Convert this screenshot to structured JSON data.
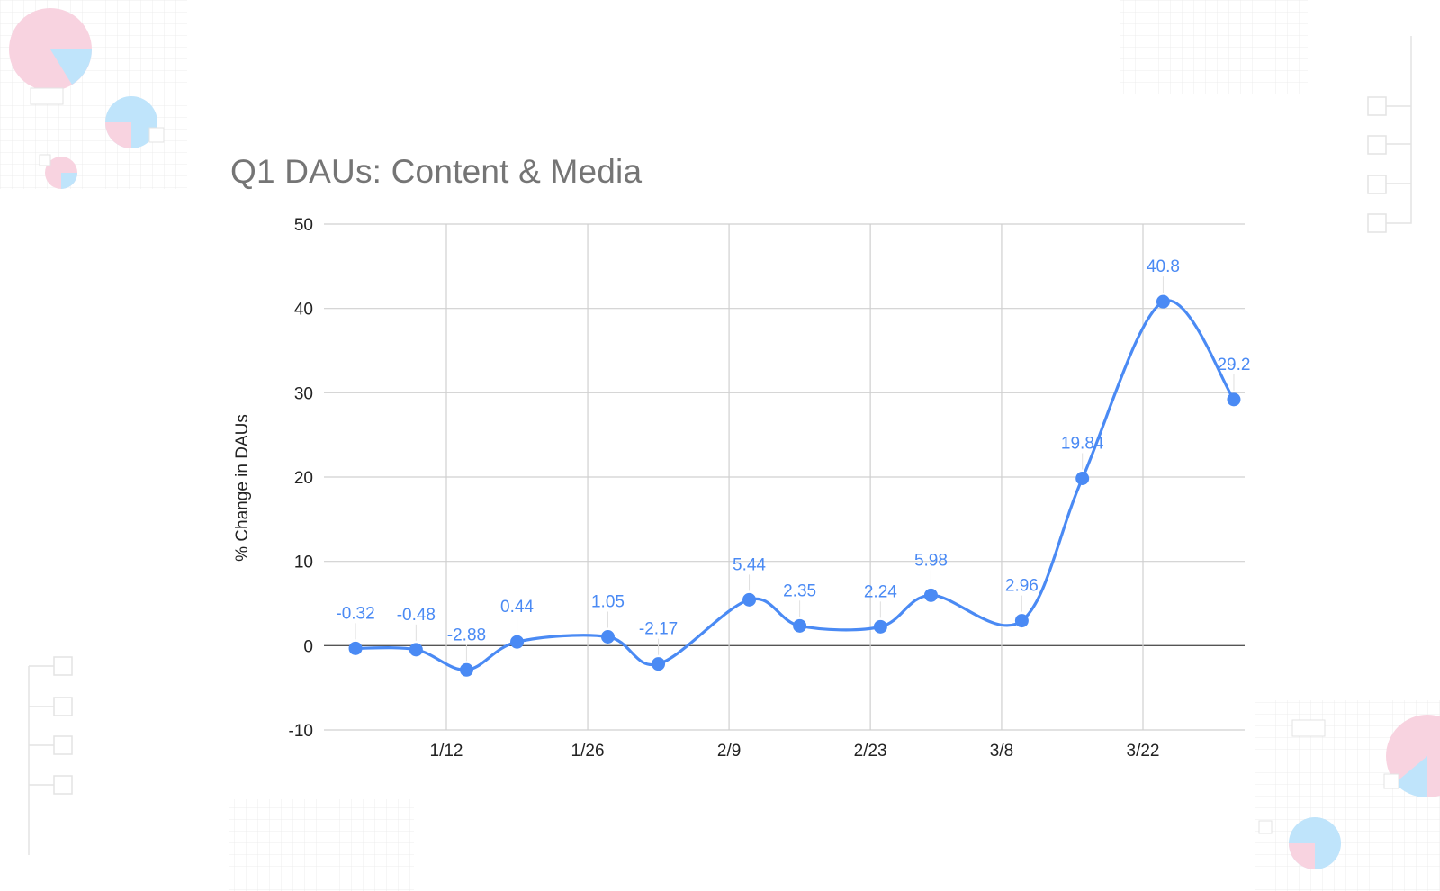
{
  "chart_data": {
    "type": "line",
    "title": "Q1 DAUs: Content & Media",
    "xlabel": "",
    "ylabel": "% Change in DAUs",
    "ylim": [
      -10,
      50
    ],
    "yticks": [
      -10,
      0,
      10,
      20,
      30,
      40,
      50
    ],
    "x_tick_labels": [
      "1/12",
      "1/26",
      "2/9",
      "2/23",
      "3/8",
      "3/22"
    ],
    "smooth": true,
    "grid": true,
    "legend": "none",
    "colors": {
      "line": "#4a8af4",
      "label": "#4a8af4",
      "grid": "#d0d0d0",
      "zero_line": "#555555",
      "text": "#222222",
      "title": "#757575"
    },
    "series": [
      {
        "points": [
          {
            "x": "1/3",
            "y": -0.32,
            "label": "-0.32"
          },
          {
            "x": "1/9",
            "y": -0.48,
            "label": "-0.48"
          },
          {
            "x": "1/14",
            "y": -2.88,
            "label": "-2.88"
          },
          {
            "x": "1/19",
            "y": 0.44,
            "label": "0.44"
          },
          {
            "x": "1/28",
            "y": 1.05,
            "label": "1.05"
          },
          {
            "x": "2/2",
            "y": -2.17,
            "label": "-2.17"
          },
          {
            "x": "2/11",
            "y": 5.44,
            "label": "5.44"
          },
          {
            "x": "2/16",
            "y": 2.35,
            "label": "2.35"
          },
          {
            "x": "2/24",
            "y": 2.24,
            "label": "2.24"
          },
          {
            "x": "3/1",
            "y": 5.98,
            "label": "5.98"
          },
          {
            "x": "3/10",
            "y": 2.96,
            "label": "2.96"
          },
          {
            "x": "3/16",
            "y": 19.84,
            "label": "19.84"
          },
          {
            "x": "3/24",
            "y": 40.8,
            "label": "40.8"
          },
          {
            "x": "3/31",
            "y": 29.2,
            "label": "29.2"
          }
        ]
      }
    ]
  }
}
